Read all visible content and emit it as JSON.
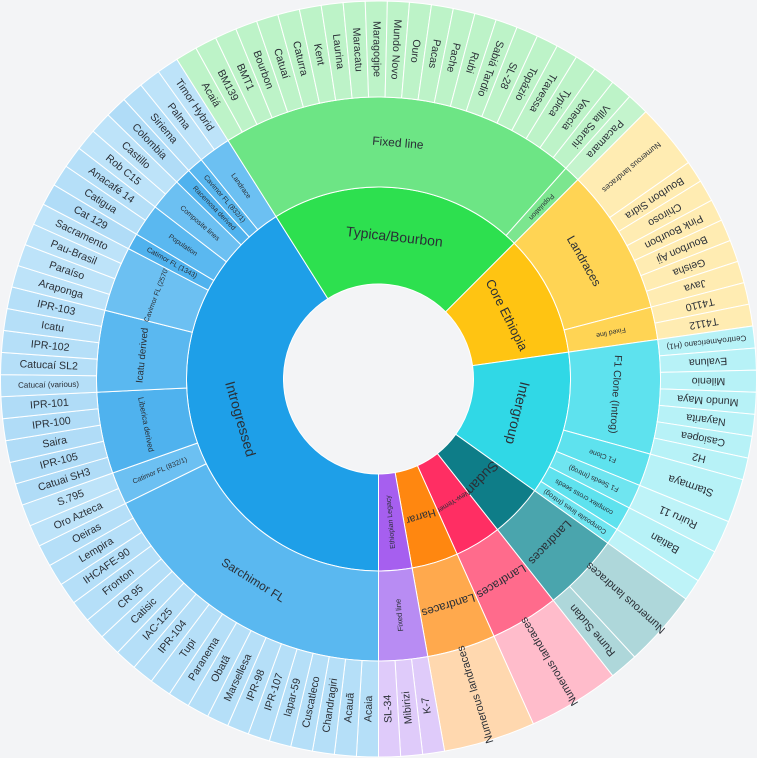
{
  "colors": {
    "background": "#f3f4f6",
    "segment_border": "#ffffff",
    "label": "#2a2f36"
  },
  "chart_data": {
    "type": "sunburst",
    "title": "",
    "unit": "leaf count (approx.)",
    "root": {
      "children": [
        {
          "name": "Introgressed",
          "color": "#1e9fe8",
          "children": [
            {
              "name": "Sarchimor FL",
              "color": "#5ab8f0",
              "children": [
                {
                  "name": "Acaia"
                },
                {
                  "name": "Acauã"
                },
                {
                  "name": "Chandragiri"
                },
                {
                  "name": "Cuscatleco"
                },
                {
                  "name": "Iapar-59"
                },
                {
                  "name": "IPR-107"
                },
                {
                  "name": "IPR-98"
                },
                {
                  "name": "Marsellesa"
                },
                {
                  "name": "Obatã"
                },
                {
                  "name": "Paranema"
                },
                {
                  "name": "Tupi"
                },
                {
                  "name": "IPR-104"
                },
                {
                  "name": "IAC-125"
                },
                {
                  "name": "Catisic"
                },
                {
                  "name": "CR 95"
                },
                {
                  "name": "Fronton"
                },
                {
                  "name": "IHCAFE-90"
                },
                {
                  "name": "Lempira"
                },
                {
                  "name": "Oeiras"
                }
              ]
            },
            {
              "name": "Catimor FL (832/1)",
              "color": "#6cc0f2",
              "children": [
                {
                  "name": "Oro Azteca"
                },
                {
                  "name": "S.795"
                }
              ]
            },
            {
              "name": "Liberica derived",
              "color": "#4fb2ee",
              "children": [
                {
                  "name": "Catuai SH3"
                },
                {
                  "name": "IPR-105"
                },
                {
                  "name": "Saira"
                },
                {
                  "name": "IPR-100"
                },
                {
                  "name": "IPR-101"
                }
              ]
            },
            {
              "name": "Icatu derived",
              "color": "#5ab8f0",
              "children": [
                {
                  "name": "Catucaí (various)"
                },
                {
                  "name": "Catucaí SL2"
                },
                {
                  "name": "IPR-102"
                },
                {
                  "name": "Icatu"
                },
                {
                  "name": "IPR-103"
                }
              ]
            },
            {
              "name": "Cavimor FL (2570)",
              "color": "#6cc0f2",
              "children": [
                {
                  "name": "Araponga"
                },
                {
                  "name": "Paraíso"
                },
                {
                  "name": "Pau-Brasil"
                },
                {
                  "name": "Sacramento"
                }
              ]
            },
            {
              "name": "Catimor FL (1343)",
              "color": "#4fb2ee",
              "children": [
                {
                  "name": "Cat 129"
                }
              ]
            },
            {
              "name": "Population",
              "color": "#5ab8f0",
              "children": [
                {
                  "name": "Catigua"
                },
                {
                  "name": "Anacafé 14"
                }
              ]
            },
            {
              "name": "Composite lines",
              "color": "#6cc0f2",
              "children": [
                {
                  "name": "Rob C15"
                },
                {
                  "name": "Castillo"
                }
              ]
            },
            {
              "name": "Racemosa derived",
              "color": "#4fb2ee",
              "children": [
                {
                  "name": "Colombia"
                }
              ]
            },
            {
              "name": "Cavimor FL (832/1)",
              "color": "#5ab8f0",
              "children": [
                {
                  "name": "Siriema"
                }
              ]
            },
            {
              "name": "Landrace",
              "color": "#6cc0f2",
              "children": [
                {
                  "name": "Palma"
                },
                {
                  "name": "Timor Hybrid"
                }
              ]
            }
          ]
        },
        {
          "name": "Typica/Bourbon",
          "color": "#2de04f",
          "children": [
            {
              "name": "Fixed line",
              "color": "#6de585",
              "children": [
                {
                  "name": "Acaiá"
                },
                {
                  "name": "BM139"
                },
                {
                  "name": "BMT1"
                },
                {
                  "name": "Bourbon"
                },
                {
                  "name": "Catuaí"
                },
                {
                  "name": "Caturra"
                },
                {
                  "name": "Kent"
                },
                {
                  "name": "Laurina"
                },
                {
                  "name": "Maracatu"
                },
                {
                  "name": "Maragogipe"
                },
                {
                  "name": "Mundo Novo"
                },
                {
                  "name": "Ouro"
                },
                {
                  "name": "Pacas"
                },
                {
                  "name": "Pache"
                },
                {
                  "name": "Rubi"
                },
                {
                  "name": "Sabiá Tardio"
                },
                {
                  "name": "SL-28"
                },
                {
                  "name": "Topázio"
                },
                {
                  "name": "Travessa"
                },
                {
                  "name": "Typica"
                },
                {
                  "name": "Venecia"
                },
                {
                  "name": "Villa Sarchi"
                }
              ]
            },
            {
              "name": "Population",
              "color": "#7ce68f",
              "children": [
                {
                  "name": "Pacamara"
                }
              ]
            }
          ]
        },
        {
          "name": "Core Ethiopia",
          "color": "#ffc412",
          "children": [
            {
              "name": "Landraces",
              "color": "#ffd454",
              "children": [
                {
                  "name": "Numerous landraces",
                  "value": 3
                },
                {
                  "name": "Bourbon Sidra"
                },
                {
                  "name": "Chiroso"
                },
                {
                  "name": "Pink Bourbon"
                },
                {
                  "name": "Bourbon Aji"
                },
                {
                  "name": "Geisha"
                },
                {
                  "name": "Java"
                }
              ]
            },
            {
              "name": "Fixed line",
              "color": "#ffd454",
              "children": [
                {
                  "name": "T4110"
                },
                {
                  "name": "T4112"
                }
              ]
            }
          ]
        },
        {
          "name": "Intergroup",
          "color": "#30d8e6",
          "children": [
            {
              "name": "F1 Clone (Introg)",
              "color": "#5ee2ee",
              "children": [
                {
                  "name": "CentroAmericano (H1)"
                },
                {
                  "name": "Evaluna"
                },
                {
                  "name": "Milenio"
                },
                {
                  "name": "Mundo Maya"
                },
                {
                  "name": "Nayarita"
                },
                {
                  "name": "Casiopea"
                },
                {
                  "name": "H2"
                }
              ]
            },
            {
              "name": "F1 Clone",
              "color": "#5ee2ee",
              "children": [
                {
                  "name": "Starmaya",
                  "value": 2
                }
              ]
            },
            {
              "name": "F1 Seeds (Introg)",
              "color": "#6fe5f0",
              "children": [
                {
                  "name": "Ruiru 11",
                  "value": 1.5
                }
              ]
            },
            {
              "name": "complex cross seeds",
              "color": "#5ee2ee",
              "children": [
                {
                  "name": "Batian",
                  "value": 1.5
                }
              ]
            },
            {
              "name": "Composite lines (Introg)",
              "color": "#6fe5f0",
              "children": [
                {
                  "name": "",
                  "value": 1
                }
              ]
            }
          ]
        },
        {
          "name": "Sudan",
          "color": "#0e7d88",
          "children": [
            {
              "name": "Landraces",
              "color": "#4aa5ad",
              "children": [
                {
                  "name": "Numerous landraces",
                  "value": 3.5
                },
                {
                  "name": "Rume Sudan",
                  "value": 1.3
                }
              ]
            }
          ]
        },
        {
          "name": "New-Yemen",
          "color": "#ff2e63",
          "children": [
            {
              "name": "Landraces",
              "color": "#ff6b8c",
              "children": [
                {
                  "name": "Numerous landraces",
                  "value": 4.2
                }
              ]
            }
          ]
        },
        {
          "name": "Harrar",
          "color": "#ff8710",
          "children": [
            {
              "name": "Landraces",
              "color": "#ffa94d",
              "children": [
                {
                  "name": "Numerous landraces",
                  "value": 4.2
                }
              ]
            }
          ]
        },
        {
          "name": "Ethiopian Legacy",
          "color": "#a65fef",
          "children": [
            {
              "name": "Fixed line",
              "color": "#b88cf3",
              "children": [
                {
                  "name": "K-7"
                },
                {
                  "name": "Mibirizi"
                },
                {
                  "name": "SL-34"
                }
              ]
            }
          ]
        }
      ]
    }
  }
}
